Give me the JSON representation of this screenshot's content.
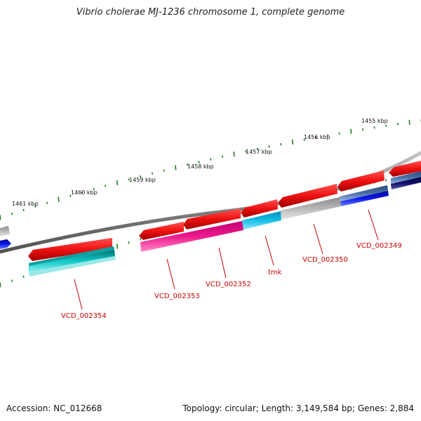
{
  "header": {
    "title": "Vibrio cholerae MJ-1236 chromosome 1, complete genome"
  },
  "footer": {
    "accession": "Accession: NC_012668",
    "summary": "Topology: circular; Length: 3,149,584 bp; Genes: 2,884"
  },
  "ruler": {
    "tick_labels": [
      "1455 kbp",
      "1456 kbp",
      "1457 kbp",
      "1458 kbp",
      "1459 kbp",
      "1460 kbp",
      "1461 kbp"
    ]
  },
  "genes": {
    "labels": [
      "VCD_002349",
      "VCD_002350",
      "tmk",
      "VCD_002352",
      "VCD_002353",
      "VCD_002354"
    ]
  },
  "colors": {
    "backbone": "#8a8a8a",
    "tick": "#1d7a1d",
    "cds_red": "#ee1111",
    "label_red": "#cc0000",
    "gene_magenta": "#ee1a8e",
    "gene_cyan": "#17bfe6",
    "gene_teal": "#10c8c8",
    "gene_grey": "#b8b8b8",
    "gene_blue": "#0a18ee",
    "gene_navy": "#10106a",
    "gene_steel": "#4a6fa8"
  }
}
